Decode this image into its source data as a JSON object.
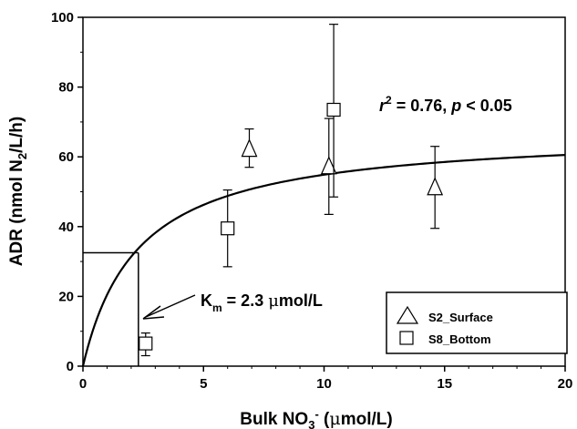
{
  "chart_data": {
    "type": "scatter",
    "xlim": [
      0,
      20
    ],
    "ylim": [
      0,
      100
    ],
    "x_ticks": [
      "0",
      "5",
      "10",
      "15",
      "20"
    ],
    "y_ticks": [
      "0",
      "20",
      "40",
      "60",
      "80",
      "100"
    ],
    "xlabel": {
      "main": "Bulk NO",
      "sub": "3",
      "sup": "-",
      "tail": " (",
      "mu": "μ",
      "unit": "mol/L)"
    },
    "ylabel": {
      "main": "ADR (nmol N",
      "sub": "2",
      "tail": "/L/h)"
    },
    "series": [
      {
        "name": "S2_Surface",
        "marker": "triangle",
        "points": [
          {
            "x": 6.9,
            "y": 62.5,
            "ylow": 57,
            "yhigh": 68
          },
          {
            "x": 10.2,
            "y": 57.5,
            "ylow": 43.5,
            "yhigh": 71
          },
          {
            "x": 14.6,
            "y": 51.5,
            "ylow": 39.5,
            "yhigh": 63
          }
        ]
      },
      {
        "name": "S8_Bottom",
        "marker": "square",
        "points": [
          {
            "x": 2.6,
            "y": 6.5,
            "ylow": 3,
            "yhigh": 9.5
          },
          {
            "x": 6.0,
            "y": 39.5,
            "ylow": 28.5,
            "yhigh": 50.5
          },
          {
            "x": 10.4,
            "y": 73.5,
            "ylow": 48.5,
            "yhigh": 98
          }
        ]
      }
    ],
    "fit_curve": {
      "vmax": 67.5,
      "km": 2.3
    },
    "km_marker": {
      "x": 2.3,
      "y": 32.5
    },
    "annotations": {
      "r2": {
        "r": "r",
        "sup": "2",
        "eq": " = 0.76, ",
        "p": "p",
        "rest": " < 0.05"
      },
      "km": {
        "k": "K",
        "sub": "m",
        "eq": " = 2.3 ",
        "mu": "μ",
        "unit": "mol/L"
      }
    },
    "legend_position": "bottom-right",
    "grid": false
  }
}
